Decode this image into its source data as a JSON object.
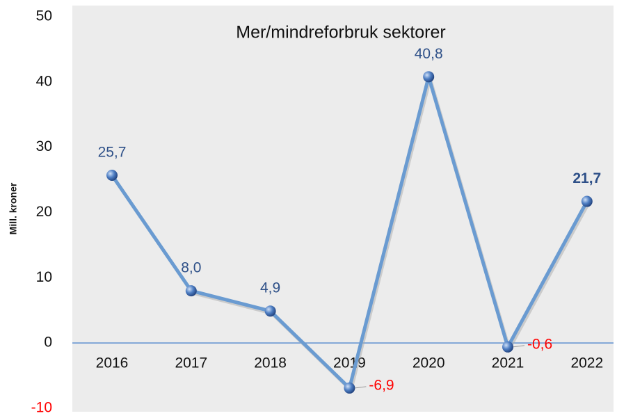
{
  "chart_data": {
    "type": "line",
    "title": "Mer/mindreforbruk sektorer",
    "y_label": "Mill. kroner",
    "categories": [
      "2016",
      "2017",
      "2018",
      "2019",
      "2020",
      "2021",
      "2022"
    ],
    "series": [
      {
        "name": "Mer/mindreforbruk",
        "color": "#6a9bd1",
        "values": [
          25.7,
          8.0,
          4.9,
          -6.9,
          40.8,
          -0.6,
          21.7
        ],
        "value_labels": [
          "25,7",
          "8,0",
          "4,9",
          "-6,9",
          "40,8",
          "-0,6",
          "21,7"
        ]
      }
    ],
    "ylim": [
      -10,
      50
    ],
    "yticks": [
      -10,
      0,
      10,
      20,
      30,
      40,
      50
    ]
  }
}
